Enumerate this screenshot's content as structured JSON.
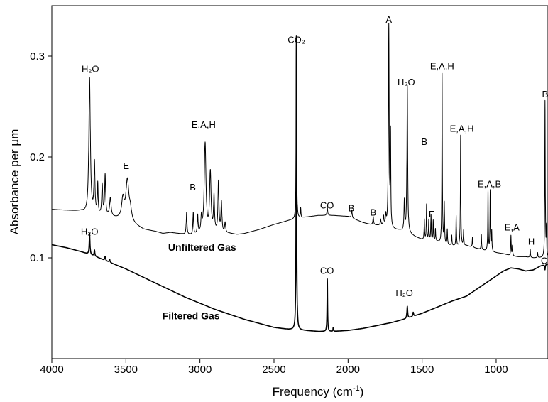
{
  "chart_data": {
    "type": "line",
    "xlabel": "Frequency (cm",
    "xlabel_sup": "-1",
    "xlabel_suffix": ")",
    "ylabel": "Absorbance per µm",
    "xlim": [
      4000,
      650
    ],
    "ylim": [
      0.0,
      0.35
    ],
    "x_reversed": true,
    "grid": false,
    "x_ticks": [
      4000,
      3500,
      3000,
      2500,
      2000,
      1500,
      1000
    ],
    "x_tick_labels": [
      "4000",
      "3500",
      "3000",
      "2500",
      "2000",
      "1500",
      "1000"
    ],
    "y_ticks": [
      0.1,
      0.2,
      0.3
    ],
    "y_tick_labels": [
      "0.1",
      "0.2",
      "0.3"
    ],
    "series": [
      {
        "name": "Unfiltered Gas",
        "color": "#000000",
        "stroke_width": 1.0,
        "label_at": [
          2985,
          0.107
        ],
        "baseline": [
          [
            4000,
            0.148
          ],
          [
            3900,
            0.147
          ],
          [
            3800,
            0.146
          ],
          [
            3760,
            0.143
          ],
          [
            3700,
            0.142
          ],
          [
            3600,
            0.14
          ],
          [
            3540,
            0.138
          ],
          [
            3450,
            0.133
          ],
          [
            3380,
            0.128
          ],
          [
            3300,
            0.126
          ],
          [
            3250,
            0.124
          ],
          [
            3200,
            0.125
          ],
          [
            3150,
            0.124
          ],
          [
            3100,
            0.123
          ],
          [
            3050,
            0.122
          ],
          [
            3000,
            0.123
          ],
          [
            2950,
            0.122
          ],
          [
            2900,
            0.124
          ],
          [
            2850,
            0.124
          ],
          [
            2800,
            0.124
          ],
          [
            2750,
            0.123
          ],
          [
            2700,
            0.124
          ],
          [
            2600,
            0.128
          ],
          [
            2500,
            0.133
          ],
          [
            2400,
            0.137
          ],
          [
            2300,
            0.14
          ],
          [
            2200,
            0.142
          ],
          [
            2100,
            0.142
          ],
          [
            2000,
            0.141
          ],
          [
            1950,
            0.138
          ],
          [
            1900,
            0.135
          ],
          [
            1850,
            0.133
          ],
          [
            1800,
            0.132
          ],
          [
            1750,
            0.131
          ],
          [
            1700,
            0.128
          ],
          [
            1650,
            0.127
          ],
          [
            1600,
            0.125
          ],
          [
            1550,
            0.121
          ],
          [
            1500,
            0.118
          ],
          [
            1450,
            0.117
          ],
          [
            1400,
            0.116
          ],
          [
            1350,
            0.113
          ],
          [
            1300,
            0.112
          ],
          [
            1250,
            0.111
          ],
          [
            1200,
            0.112
          ],
          [
            1150,
            0.11
          ],
          [
            1100,
            0.108
          ],
          [
            1050,
            0.106
          ],
          [
            1000,
            0.105
          ],
          [
            950,
            0.104
          ],
          [
            900,
            0.102
          ],
          [
            850,
            0.101
          ],
          [
            800,
            0.101
          ],
          [
            750,
            0.1
          ],
          [
            700,
            0.1
          ],
          [
            650,
            0.1
          ]
        ],
        "peaks": [
          [
            3745,
            0.135,
            6
          ],
          [
            3712,
            0.05,
            4
          ],
          [
            3690,
            0.03,
            3
          ],
          [
            3660,
            0.03,
            4
          ],
          [
            3640,
            0.04,
            4
          ],
          [
            3605,
            0.018,
            6
          ],
          [
            3520,
            0.02,
            10
          ],
          [
            3490,
            0.04,
            12
          ],
          [
            3470,
            0.01,
            10
          ],
          [
            3090,
            0.022,
            3
          ],
          [
            3045,
            0.022,
            3
          ],
          [
            3015,
            0.018,
            3
          ],
          [
            2990,
            0.015,
            4
          ],
          [
            2965,
            0.09,
            7
          ],
          [
            2930,
            0.06,
            6
          ],
          [
            2905,
            0.035,
            4
          ],
          [
            2875,
            0.05,
            4
          ],
          [
            2855,
            0.03,
            4
          ],
          [
            2830,
            0.01,
            4
          ],
          [
            2349,
            0.172,
            2
          ],
          [
            2320,
            0.01,
            2
          ],
          [
            2140,
            0.008,
            3
          ],
          [
            1975,
            0.008,
            3
          ],
          [
            1830,
            0.008,
            3
          ],
          [
            1780,
            0.006,
            3
          ],
          [
            1760,
            0.009,
            3
          ],
          [
            1745,
            0.01,
            3
          ],
          [
            1725,
            0.2,
            3
          ],
          [
            1713,
            0.09,
            2
          ],
          [
            1620,
            0.03,
            3
          ],
          [
            1600,
            0.145,
            3
          ],
          [
            1485,
            0.02,
            2
          ],
          [
            1470,
            0.035,
            2
          ],
          [
            1455,
            0.02,
            2
          ],
          [
            1440,
            0.025,
            2
          ],
          [
            1425,
            0.02,
            2
          ],
          [
            1410,
            0.012,
            2
          ],
          [
            1365,
            0.168,
            2
          ],
          [
            1350,
            0.04,
            2
          ],
          [
            1330,
            0.015,
            2
          ],
          [
            1300,
            0.01,
            2
          ],
          [
            1270,
            0.03,
            2
          ],
          [
            1240,
            0.11,
            2
          ],
          [
            1220,
            0.015,
            2
          ],
          [
            1160,
            0.01,
            2
          ],
          [
            1100,
            0.015,
            2
          ],
          [
            1055,
            0.06,
            2
          ],
          [
            1040,
            0.06,
            2
          ],
          [
            1030,
            0.02,
            2
          ],
          [
            900,
            0.02,
            2
          ],
          [
            890,
            0.01,
            2
          ],
          [
            770,
            0.008,
            2
          ],
          [
            720,
            0.005,
            2
          ],
          [
            670,
            0.155,
            2
          ],
          [
            660,
            0.03,
            2
          ]
        ],
        "dips": [
          [
            657,
            0.005,
            2
          ]
        ]
      },
      {
        "name": "Filtered Gas",
        "color": "#000000",
        "stroke_width": 1.6,
        "label_at": [
          3060,
          0.039
        ],
        "baseline": [
          [
            4000,
            0.113
          ],
          [
            3900,
            0.11
          ],
          [
            3800,
            0.106
          ],
          [
            3700,
            0.101
          ],
          [
            3600,
            0.095
          ],
          [
            3500,
            0.089
          ],
          [
            3400,
            0.082
          ],
          [
            3300,
            0.075
          ],
          [
            3200,
            0.068
          ],
          [
            3100,
            0.061
          ],
          [
            3000,
            0.055
          ],
          [
            2900,
            0.049
          ],
          [
            2800,
            0.044
          ],
          [
            2700,
            0.039
          ],
          [
            2600,
            0.035
          ],
          [
            2500,
            0.031
          ],
          [
            2400,
            0.029
          ],
          [
            2300,
            0.028
          ],
          [
            2200,
            0.027
          ],
          [
            2100,
            0.027
          ],
          [
            2000,
            0.028
          ],
          [
            1900,
            0.03
          ],
          [
            1800,
            0.033
          ],
          [
            1700,
            0.036
          ],
          [
            1600,
            0.04
          ],
          [
            1500,
            0.045
          ],
          [
            1400,
            0.051
          ],
          [
            1300,
            0.057
          ],
          [
            1200,
            0.062
          ],
          [
            1100,
            0.072
          ],
          [
            1000,
            0.082
          ],
          [
            950,
            0.087
          ],
          [
            900,
            0.09
          ],
          [
            850,
            0.089
          ],
          [
            800,
            0.087
          ],
          [
            750,
            0.088
          ],
          [
            700,
            0.092
          ],
          [
            650,
            0.094
          ]
        ],
        "peaks": [
          [
            3745,
            0.021,
            3
          ],
          [
            3712,
            0.006,
            3
          ],
          [
            3640,
            0.004,
            3
          ],
          [
            3610,
            0.003,
            3
          ],
          [
            2349,
            0.292,
            2
          ],
          [
            2140,
            0.052,
            2
          ],
          [
            2100,
            0.004,
            2
          ],
          [
            1600,
            0.012,
            3
          ],
          [
            1560,
            0.004,
            3
          ]
        ],
        "dips": [
          [
            670,
            0.005,
            2
          ]
        ]
      }
    ],
    "annotations": [
      {
        "text": "H₂O",
        "x": 3740,
        "y": 0.284,
        "series": "Unfiltered Gas"
      },
      {
        "text": "E",
        "x": 3498,
        "y": 0.188,
        "series": "Unfiltered Gas"
      },
      {
        "text": "B",
        "x": 3048,
        "y": 0.167,
        "series": "Unfiltered Gas"
      },
      {
        "text": "E,A,H",
        "x": 2975,
        "y": 0.229,
        "series": "Unfiltered Gas"
      },
      {
        "text": "CO₂",
        "x": 2349,
        "y": 0.313,
        "series": "Unfiltered Gas"
      },
      {
        "text": "CO",
        "x": 2142,
        "y": 0.149,
        "series": "Unfiltered Gas"
      },
      {
        "text": "B",
        "x": 1978,
        "y": 0.146,
        "series": "Unfiltered Gas"
      },
      {
        "text": "B",
        "x": 1830,
        "y": 0.142,
        "series": "Unfiltered Gas"
      },
      {
        "text": "A",
        "x": 1725,
        "y": 0.333,
        "series": "Unfiltered Gas"
      },
      {
        "text": "H₂O",
        "x": 1607,
        "y": 0.271,
        "series": "Unfiltered Gas"
      },
      {
        "text": "B",
        "x": 1485,
        "y": 0.212,
        "series": "Unfiltered Gas"
      },
      {
        "text": "E",
        "x": 1435,
        "y": 0.14,
        "series": "Unfiltered Gas"
      },
      {
        "text": "E,A,H",
        "x": 1365,
        "y": 0.287,
        "series": "Unfiltered Gas"
      },
      {
        "text": "E,A,H",
        "x": 1232,
        "y": 0.225,
        "series": "Unfiltered Gas"
      },
      {
        "text": "E,A,B",
        "x": 1045,
        "y": 0.17,
        "series": "Unfiltered Gas"
      },
      {
        "text": "E,A",
        "x": 893,
        "y": 0.127,
        "series": "Unfiltered Gas"
      },
      {
        "text": "H",
        "x": 762,
        "y": 0.113,
        "series": "Unfiltered Gas"
      },
      {
        "text": "B",
        "x": 670,
        "y": 0.259,
        "series": "Unfiltered Gas"
      },
      {
        "text": "H₂O",
        "x": 3745,
        "y": 0.123,
        "series": "Filtered Gas"
      },
      {
        "text": "CO",
        "x": 2142,
        "y": 0.084,
        "series": "Filtered Gas"
      },
      {
        "text": "H₂O",
        "x": 1620,
        "y": 0.062,
        "series": "Filtered Gas"
      },
      {
        "text": "CO",
        "x": 652,
        "y": 0.094,
        "series": "Filtered Gas"
      }
    ]
  }
}
